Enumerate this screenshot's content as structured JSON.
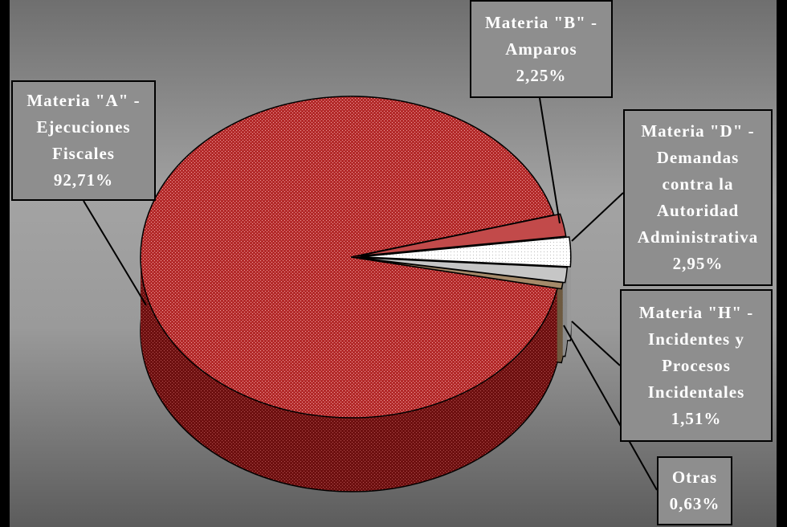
{
  "chart_data": {
    "type": "pie",
    "title": "",
    "slices": [
      {
        "label": "Materia \"A\" - Ejecuciones Fiscales",
        "lines": [
          "Materia \"A\" -",
          "Ejecuciones",
          "Fiscales"
        ],
        "value_text": "92,71%",
        "value": 92.71,
        "color": "#b32a2a"
      },
      {
        "label": "Materia \"B\" - Amparos",
        "lines": [
          "Materia \"B\" -",
          "Amparos"
        ],
        "value_text": "2,25%",
        "value": 2.25,
        "color": "#c24a4a"
      },
      {
        "label": "Materia \"D\" - Demandas contra la Autoridad Administrativa",
        "lines": [
          "Materia \"D\" -",
          "Demandas",
          "contra la",
          "Autoridad",
          "Administrativa"
        ],
        "value_text": "2,95%",
        "value": 2.95,
        "color": "#f4f4f4"
      },
      {
        "label": "Materia \"H\" - Incidentes y Procesos Incidentales",
        "lines": [
          "Materia \"H\" -",
          "Incidentes y",
          "Procesos",
          "Incidentales"
        ],
        "value_text": "1,51%",
        "value": 1.51,
        "color": "#c6c6c6"
      },
      {
        "label": "Otras",
        "lines": [
          "Otras"
        ],
        "value_text": "0,63%",
        "value": 0.63,
        "color": "#a58a6a"
      }
    ]
  }
}
